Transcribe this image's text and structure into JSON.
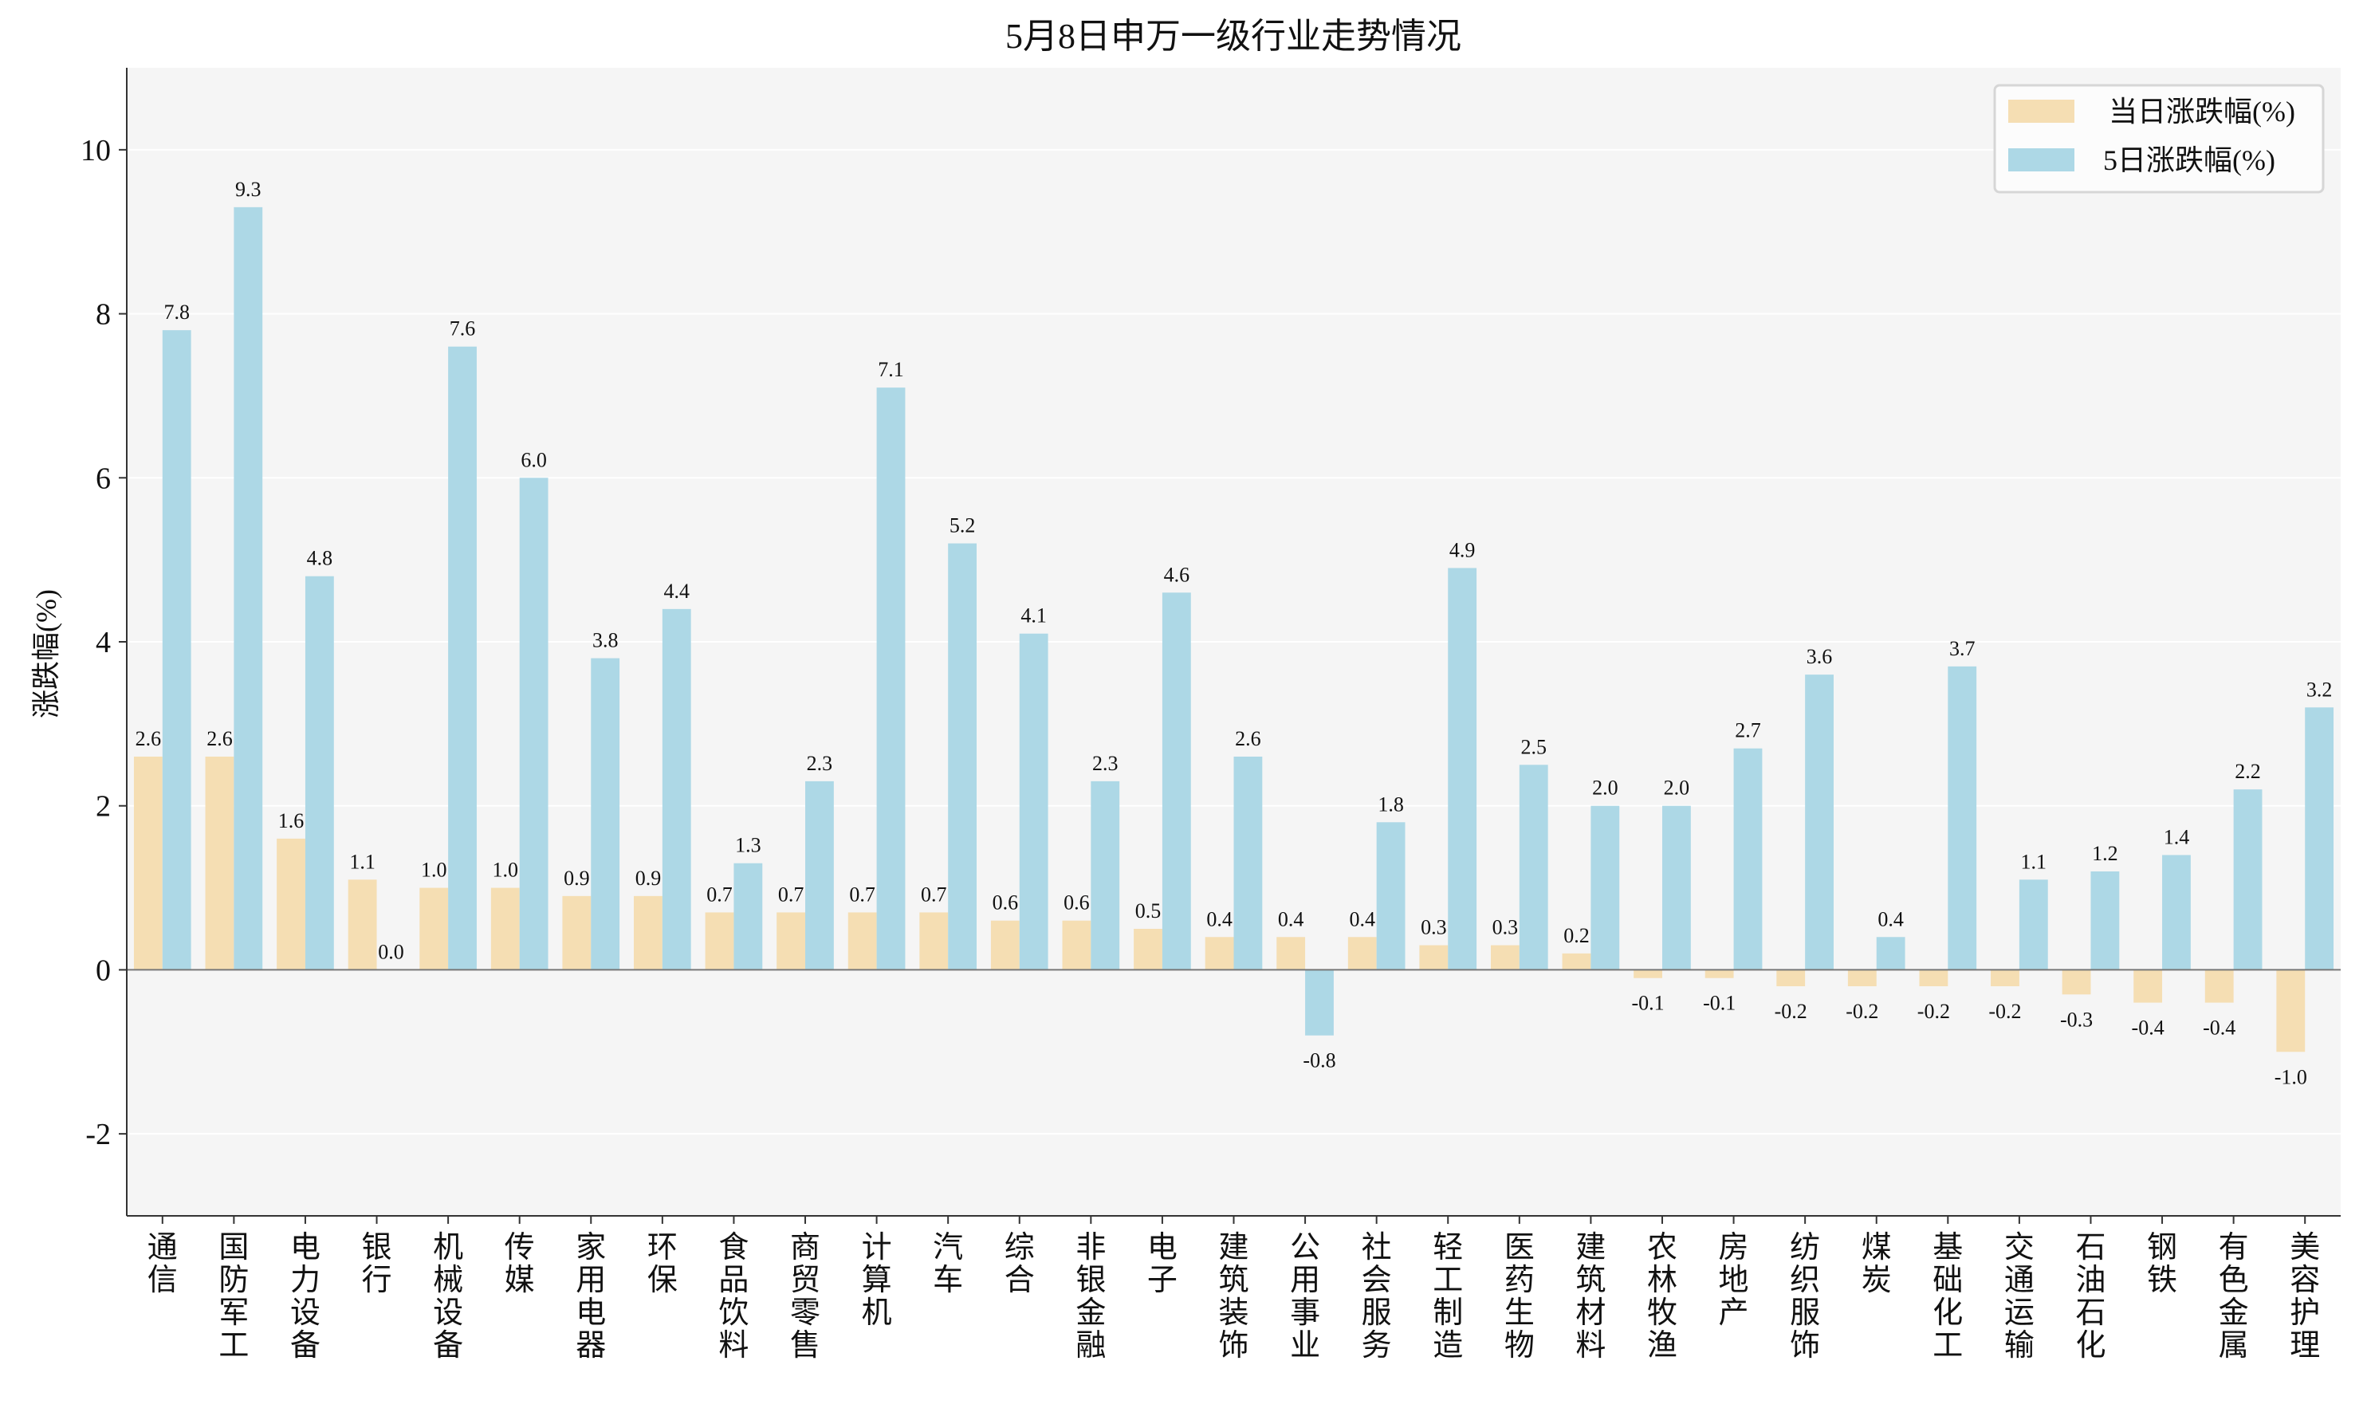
{
  "chart_data": {
    "type": "bar",
    "title": "5月8日申万一级行业走势情况",
    "xlabel": "",
    "ylabel": "涨跌幅(%)",
    "ylim": [
      -3,
      11
    ],
    "yticks": [
      -2,
      0,
      2,
      4,
      6,
      8,
      10
    ],
    "grid": true,
    "legend_position": "top-right",
    "categories": [
      "通信",
      "国防军工",
      "电力设备",
      "银行",
      "机械设备",
      "传媒",
      "家用电器",
      "环保",
      "食品饮料",
      "商贸零售",
      "计算机",
      "汽车",
      "综合",
      "非银金融",
      "电子",
      "建筑装饰",
      "公用事业",
      "社会服务",
      "轻工制造",
      "医药生物",
      "建筑材料",
      "农林牧渔",
      "房地产",
      "纺织服饰",
      "煤炭",
      "基础化工",
      "交通运输",
      "石油石化",
      "钢铁",
      "有色金属",
      "美容护理"
    ],
    "series": [
      {
        "name": "当日涨跌幅(%)",
        "color": "#f5deb3",
        "values": [
          2.6,
          2.6,
          1.6,
          1.1,
          1.0,
          1.0,
          0.9,
          0.9,
          0.7,
          0.7,
          0.7,
          0.7,
          0.6,
          0.6,
          0.5,
          0.4,
          0.4,
          0.4,
          0.3,
          0.3,
          0.2,
          -0.1,
          -0.1,
          -0.2,
          -0.2,
          -0.2,
          -0.2,
          -0.3,
          -0.4,
          -0.4,
          -1.0
        ]
      },
      {
        "name": "5日涨跌幅(%)",
        "color": "#add8e6",
        "values": [
          7.8,
          9.3,
          4.8,
          0.0,
          7.6,
          6.0,
          3.8,
          4.4,
          1.3,
          2.3,
          7.1,
          5.2,
          4.1,
          2.3,
          4.6,
          2.6,
          -0.8,
          1.8,
          4.9,
          2.5,
          2.0,
          2.0,
          2.7,
          3.6,
          0.4,
          3.7,
          1.1,
          1.2,
          1.4,
          2.2,
          3.2
        ]
      }
    ],
    "plot_background": "#f5f5f5"
  }
}
